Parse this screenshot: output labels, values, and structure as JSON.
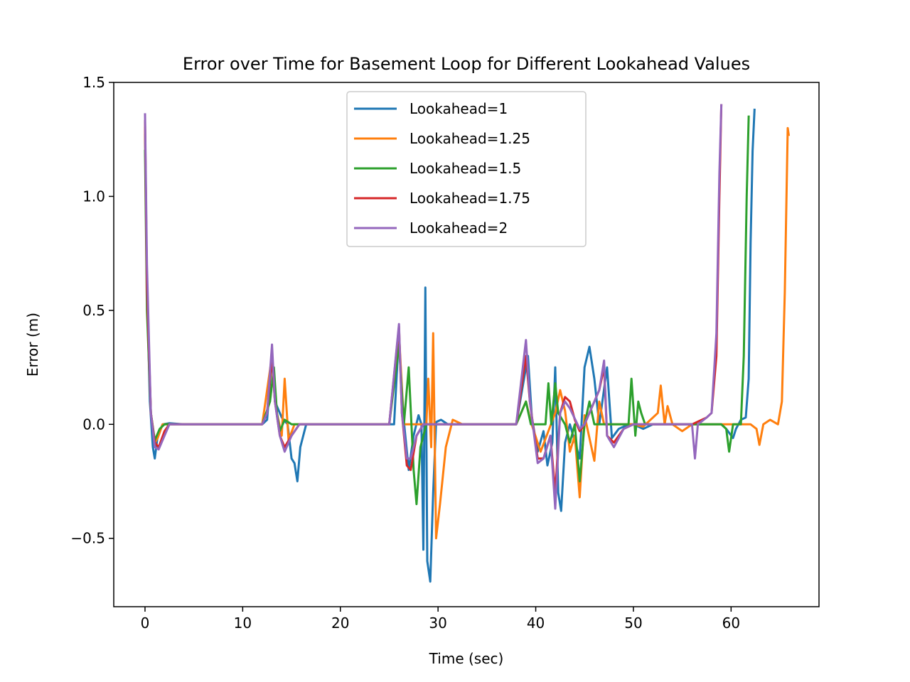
{
  "chart_data": {
    "type": "line",
    "title": "Error over Time for Basement Loop for Different Lookahead Values",
    "xlabel": "Time (sec)",
    "ylabel": "Error (m)",
    "xlim": [
      -3.2,
      69
    ],
    "ylim": [
      -0.8,
      1.5
    ],
    "x_ticks": [
      0,
      10,
      20,
      30,
      40,
      50,
      60
    ],
    "x_tick_labels": [
      "0",
      "10",
      "20",
      "30",
      "40",
      "50",
      "60"
    ],
    "y_ticks": [
      -0.5,
      0.0,
      0.5,
      1.0,
      1.5
    ],
    "y_tick_labels": [
      "−0.5",
      "0.0",
      "0.5",
      "1.0",
      "1.5"
    ],
    "grid": false,
    "legend_position": "top-center",
    "series": [
      {
        "name": "Lookahead=1",
        "color": "#1f77b4",
        "points": [
          [
            0,
            1.27
          ],
          [
            0.2,
            0.6
          ],
          [
            0.5,
            0.1
          ],
          [
            0.8,
            -0.1
          ],
          [
            1.0,
            -0.15
          ],
          [
            1.3,
            -0.05
          ],
          [
            1.8,
            0.0
          ],
          [
            2.5,
            0.005
          ],
          [
            4,
            0.0
          ],
          [
            12,
            0.0
          ],
          [
            12.5,
            0.02
          ],
          [
            13.0,
            0.3
          ],
          [
            13.3,
            0.1
          ],
          [
            14.0,
            0.03
          ],
          [
            14.6,
            0.0
          ],
          [
            15.0,
            -0.15
          ],
          [
            15.3,
            -0.17
          ],
          [
            15.6,
            -0.25
          ],
          [
            15.9,
            -0.1
          ],
          [
            16.5,
            0.0
          ],
          [
            18,
            0.0
          ],
          [
            25,
            0.0
          ],
          [
            25.5,
            0.0
          ],
          [
            26.0,
            0.4
          ],
          [
            26.3,
            0.1
          ],
          [
            27.0,
            -0.2
          ],
          [
            27.5,
            -0.05
          ],
          [
            28.0,
            0.04
          ],
          [
            28.3,
            0.0
          ],
          [
            28.5,
            -0.55
          ],
          [
            28.7,
            0.6
          ],
          [
            28.9,
            -0.6
          ],
          [
            29.2,
            -0.69
          ],
          [
            29.5,
            -0.3
          ],
          [
            29.8,
            0.01
          ],
          [
            30.3,
            0.02
          ],
          [
            31,
            0.0
          ],
          [
            38,
            0.0
          ],
          [
            39.2,
            0.3
          ],
          [
            39.6,
            0.03
          ],
          [
            40.2,
            -0.12
          ],
          [
            40.8,
            -0.03
          ],
          [
            41.2,
            -0.18
          ],
          [
            41.7,
            -0.08
          ],
          [
            42.0,
            0.25
          ],
          [
            42.3,
            -0.3
          ],
          [
            42.6,
            -0.38
          ],
          [
            43.0,
            -0.08
          ],
          [
            43.5,
            0.0
          ],
          [
            44.5,
            -0.15
          ],
          [
            45.0,
            0.25
          ],
          [
            45.5,
            0.34
          ],
          [
            46.0,
            0.2
          ],
          [
            46.5,
            0.0
          ],
          [
            47.3,
            0.25
          ],
          [
            47.8,
            -0.06
          ],
          [
            48.5,
            -0.02
          ],
          [
            49.5,
            0.0
          ],
          [
            50,
            0.0
          ],
          [
            51,
            -0.02
          ],
          [
            52,
            0.0
          ],
          [
            57,
            0.0
          ],
          [
            59,
            0.0
          ],
          [
            59.5,
            -0.02
          ],
          [
            60.2,
            -0.06
          ],
          [
            60.5,
            -0.02
          ],
          [
            61.0,
            0.02
          ],
          [
            61.5,
            0.03
          ],
          [
            61.8,
            0.2
          ],
          [
            62.0,
            0.8
          ],
          [
            62.2,
            1.2
          ],
          [
            62.4,
            1.38
          ]
        ]
      },
      {
        "name": "Lookahead=1.25",
        "color": "#ff7f0e",
        "points": [
          [
            0,
            1.3
          ],
          [
            0.2,
            0.6
          ],
          [
            0.6,
            0.05
          ],
          [
            1.0,
            -0.08
          ],
          [
            1.3,
            -0.06
          ],
          [
            1.8,
            0.0
          ],
          [
            12,
            0.0
          ],
          [
            13.0,
            0.3
          ],
          [
            13.5,
            0.05
          ],
          [
            14.0,
            -0.05
          ],
          [
            14.3,
            0.2
          ],
          [
            14.7,
            -0.07
          ],
          [
            15.3,
            0.0
          ],
          [
            25,
            0.0
          ],
          [
            26.0,
            0.4
          ],
          [
            26.5,
            0.0
          ],
          [
            28.8,
            0.0
          ],
          [
            29.0,
            0.2
          ],
          [
            29.3,
            -0.1
          ],
          [
            29.5,
            0.4
          ],
          [
            29.8,
            -0.5
          ],
          [
            30.2,
            -0.35
          ],
          [
            30.8,
            -0.1
          ],
          [
            31.5,
            0.02
          ],
          [
            32.5,
            0.0
          ],
          [
            38,
            0.0
          ],
          [
            39.0,
            0.1
          ],
          [
            39.5,
            0.01
          ],
          [
            40.5,
            -0.12
          ],
          [
            42,
            0.05
          ],
          [
            42.5,
            0.15
          ],
          [
            43.0,
            0.06
          ],
          [
            43.5,
            -0.12
          ],
          [
            44.0,
            -0.05
          ],
          [
            44.5,
            -0.32
          ],
          [
            45.0,
            0.04
          ],
          [
            46.0,
            -0.16
          ],
          [
            46.5,
            0.1
          ],
          [
            47,
            0.0
          ],
          [
            50,
            0.0
          ],
          [
            51,
            -0.01
          ],
          [
            52.5,
            0.05
          ],
          [
            52.8,
            0.17
          ],
          [
            53.2,
            0.0
          ],
          [
            53.5,
            0.08
          ],
          [
            54,
            0.0
          ],
          [
            55,
            -0.03
          ],
          [
            56,
            0.0
          ],
          [
            62,
            0.0
          ],
          [
            62.6,
            -0.02
          ],
          [
            62.9,
            -0.09
          ],
          [
            63.3,
            0.0
          ],
          [
            64,
            0.02
          ],
          [
            64.8,
            0.0
          ],
          [
            65.2,
            0.1
          ],
          [
            65.5,
            0.58
          ],
          [
            65.8,
            1.3
          ],
          [
            65.9,
            1.27
          ]
        ]
      },
      {
        "name": "Lookahead=1.5",
        "color": "#2ca02c",
        "points": [
          [
            0,
            1.2
          ],
          [
            0.2,
            0.5
          ],
          [
            0.6,
            0.05
          ],
          [
            1.0,
            -0.07
          ],
          [
            1.5,
            -0.02
          ],
          [
            2.0,
            0.0
          ],
          [
            12,
            0.0
          ],
          [
            12.8,
            0.1
          ],
          [
            13.2,
            0.25
          ],
          [
            13.5,
            0.05
          ],
          [
            13.8,
            -0.03
          ],
          [
            14.3,
            0.02
          ],
          [
            15.0,
            0.0
          ],
          [
            25,
            0.0
          ],
          [
            26.0,
            0.35
          ],
          [
            26.5,
            0.0
          ],
          [
            27.0,
            0.25
          ],
          [
            27.5,
            -0.2
          ],
          [
            27.8,
            -0.35
          ],
          [
            28.2,
            -0.1
          ],
          [
            28.8,
            0.0
          ],
          [
            38,
            0.0
          ],
          [
            39.0,
            0.1
          ],
          [
            39.5,
            0.0
          ],
          [
            41.0,
            0.0
          ],
          [
            41.3,
            0.18
          ],
          [
            41.6,
            0.0
          ],
          [
            42.0,
            0.18
          ],
          [
            42.3,
            0.05
          ],
          [
            43.0,
            0.0
          ],
          [
            43.5,
            -0.08
          ],
          [
            44.0,
            0.0
          ],
          [
            44.5,
            -0.25
          ],
          [
            45.0,
            0.0
          ],
          [
            45.5,
            0.1
          ],
          [
            46.0,
            0.0
          ],
          [
            49.5,
            0.0
          ],
          [
            49.8,
            0.2
          ],
          [
            50.2,
            -0.05
          ],
          [
            50.5,
            0.1
          ],
          [
            50.8,
            0.05
          ],
          [
            51.2,
            0.0
          ],
          [
            52,
            0.0
          ],
          [
            58,
            0.0
          ],
          [
            59,
            0.0
          ],
          [
            59.5,
            -0.02
          ],
          [
            59.8,
            -0.12
          ],
          [
            60.2,
            0.0
          ],
          [
            61.0,
            0.0
          ],
          [
            61.3,
            0.3
          ],
          [
            61.6,
            1.0
          ],
          [
            61.8,
            1.35
          ]
        ]
      },
      {
        "name": "Lookahead=1.75",
        "color": "#d62728",
        "points": [
          [
            0,
            1.33
          ],
          [
            0.2,
            0.6
          ],
          [
            0.6,
            0.05
          ],
          [
            1.0,
            -0.08
          ],
          [
            1.4,
            -0.1
          ],
          [
            2.0,
            -0.03
          ],
          [
            2.5,
            0.0
          ],
          [
            12,
            0.0
          ],
          [
            12.5,
            0.05
          ],
          [
            13.0,
            0.3
          ],
          [
            13.3,
            0.1
          ],
          [
            13.8,
            -0.05
          ],
          [
            14.3,
            -0.1
          ],
          [
            15.0,
            -0.05
          ],
          [
            15.8,
            0.0
          ],
          [
            25,
            0.0
          ],
          [
            26.0,
            0.43
          ],
          [
            26.3,
            0.05
          ],
          [
            26.8,
            -0.18
          ],
          [
            27.2,
            -0.2
          ],
          [
            27.8,
            -0.05
          ],
          [
            28.5,
            0.0
          ],
          [
            38,
            0.0
          ],
          [
            39.0,
            0.3
          ],
          [
            39.4,
            0.1
          ],
          [
            40.2,
            -0.15
          ],
          [
            40.8,
            -0.15
          ],
          [
            41.5,
            -0.05
          ],
          [
            42.0,
            -0.3
          ],
          [
            42.5,
            0.05
          ],
          [
            43.0,
            0.12
          ],
          [
            43.5,
            0.1
          ],
          [
            44.0,
            0.02
          ],
          [
            44.5,
            -0.03
          ],
          [
            45.0,
            0.0
          ],
          [
            46.5,
            0.15
          ],
          [
            47.0,
            0.25
          ],
          [
            47.3,
            -0.05
          ],
          [
            48.0,
            -0.08
          ],
          [
            49.0,
            -0.02
          ],
          [
            50.0,
            0.0
          ],
          [
            56,
            0.0
          ],
          [
            57.5,
            0.03
          ],
          [
            58.0,
            0.05
          ],
          [
            58.5,
            0.3
          ],
          [
            58.8,
            1.0
          ],
          [
            59.0,
            1.4
          ]
        ]
      },
      {
        "name": "Lookahead=2",
        "color": "#9467bd",
        "points": [
          [
            0,
            1.36
          ],
          [
            0.2,
            0.7
          ],
          [
            0.6,
            0.05
          ],
          [
            1.0,
            -0.1
          ],
          [
            1.4,
            -0.11
          ],
          [
            2.0,
            -0.05
          ],
          [
            2.5,
            0.0
          ],
          [
            12,
            0.0
          ],
          [
            12.5,
            0.05
          ],
          [
            13.0,
            0.35
          ],
          [
            13.3,
            0.1
          ],
          [
            13.8,
            -0.05
          ],
          [
            14.3,
            -0.12
          ],
          [
            15.0,
            -0.05
          ],
          [
            15.8,
            0.0
          ],
          [
            25,
            0.0
          ],
          [
            26.0,
            0.44
          ],
          [
            26.3,
            0.05
          ],
          [
            26.8,
            -0.15
          ],
          [
            27.2,
            -0.15
          ],
          [
            27.8,
            -0.05
          ],
          [
            28.5,
            0.0
          ],
          [
            38,
            0.0
          ],
          [
            39.0,
            0.37
          ],
          [
            39.4,
            0.1
          ],
          [
            40.2,
            -0.17
          ],
          [
            40.8,
            -0.15
          ],
          [
            41.5,
            -0.05
          ],
          [
            42.0,
            -0.37
          ],
          [
            42.5,
            0.05
          ],
          [
            43.0,
            0.1
          ],
          [
            43.5,
            0.07
          ],
          [
            44.5,
            -0.02
          ],
          [
            45.0,
            0.0
          ],
          [
            46.5,
            0.15
          ],
          [
            47.0,
            0.28
          ],
          [
            47.3,
            -0.05
          ],
          [
            48.0,
            -0.1
          ],
          [
            49.0,
            -0.02
          ],
          [
            50.0,
            0.0
          ],
          [
            56,
            0.0
          ],
          [
            56.3,
            -0.15
          ],
          [
            56.6,
            0.0
          ],
          [
            57.5,
            0.03
          ],
          [
            58.0,
            0.05
          ],
          [
            58.5,
            0.4
          ],
          [
            58.8,
            1.1
          ],
          [
            59.0,
            1.4
          ]
        ]
      }
    ]
  }
}
